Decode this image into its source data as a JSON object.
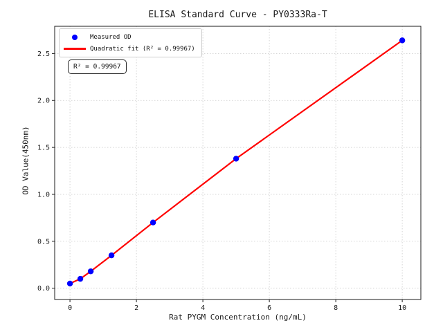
{
  "chart_data": {
    "type": "scatter",
    "title": "ELISA Standard Curve - PY0333Ra-T",
    "xlabel": "Rat PYGM Concentration (ng/mL)",
    "ylabel": "OD Value(450nm)",
    "xlim": [
      -0.46,
      10.56
    ],
    "ylim": [
      -0.12,
      2.79
    ],
    "xticks": [
      0,
      2,
      4,
      6,
      8,
      10
    ],
    "yticks": [
      0,
      0.5,
      1,
      1.5,
      2,
      2.5
    ],
    "grid": true,
    "grid_color": "#c9c9c9",
    "axis_color": "#1a1a1a",
    "legend": {
      "position": "upper-left",
      "entries": [
        {
          "label": "Measured OD",
          "marker": "dot",
          "color": "#0000ff"
        },
        {
          "label": "Quadratic fit (R² = 0.99967)",
          "marker": "line",
          "color": "#ff0000"
        }
      ]
    },
    "annotation": {
      "text": "R² = 0.99967"
    },
    "series": [
      {
        "name": "Measured OD",
        "type": "scatter",
        "color": "#0000ff",
        "x": [
          0,
          0.3125,
          0.625,
          1.25,
          2.5,
          5,
          10
        ],
        "y": [
          0.05,
          0.1,
          0.18,
          0.35,
          0.7,
          1.38,
          2.64
        ]
      },
      {
        "name": "Quadratic fit",
        "type": "line",
        "color": "#ff0000",
        "x": [
          0,
          0.3125,
          0.625,
          1.25,
          2.5,
          5,
          10
        ],
        "y": [
          0.05,
          0.1,
          0.18,
          0.35,
          0.7,
          1.38,
          2.64
        ]
      }
    ]
  }
}
